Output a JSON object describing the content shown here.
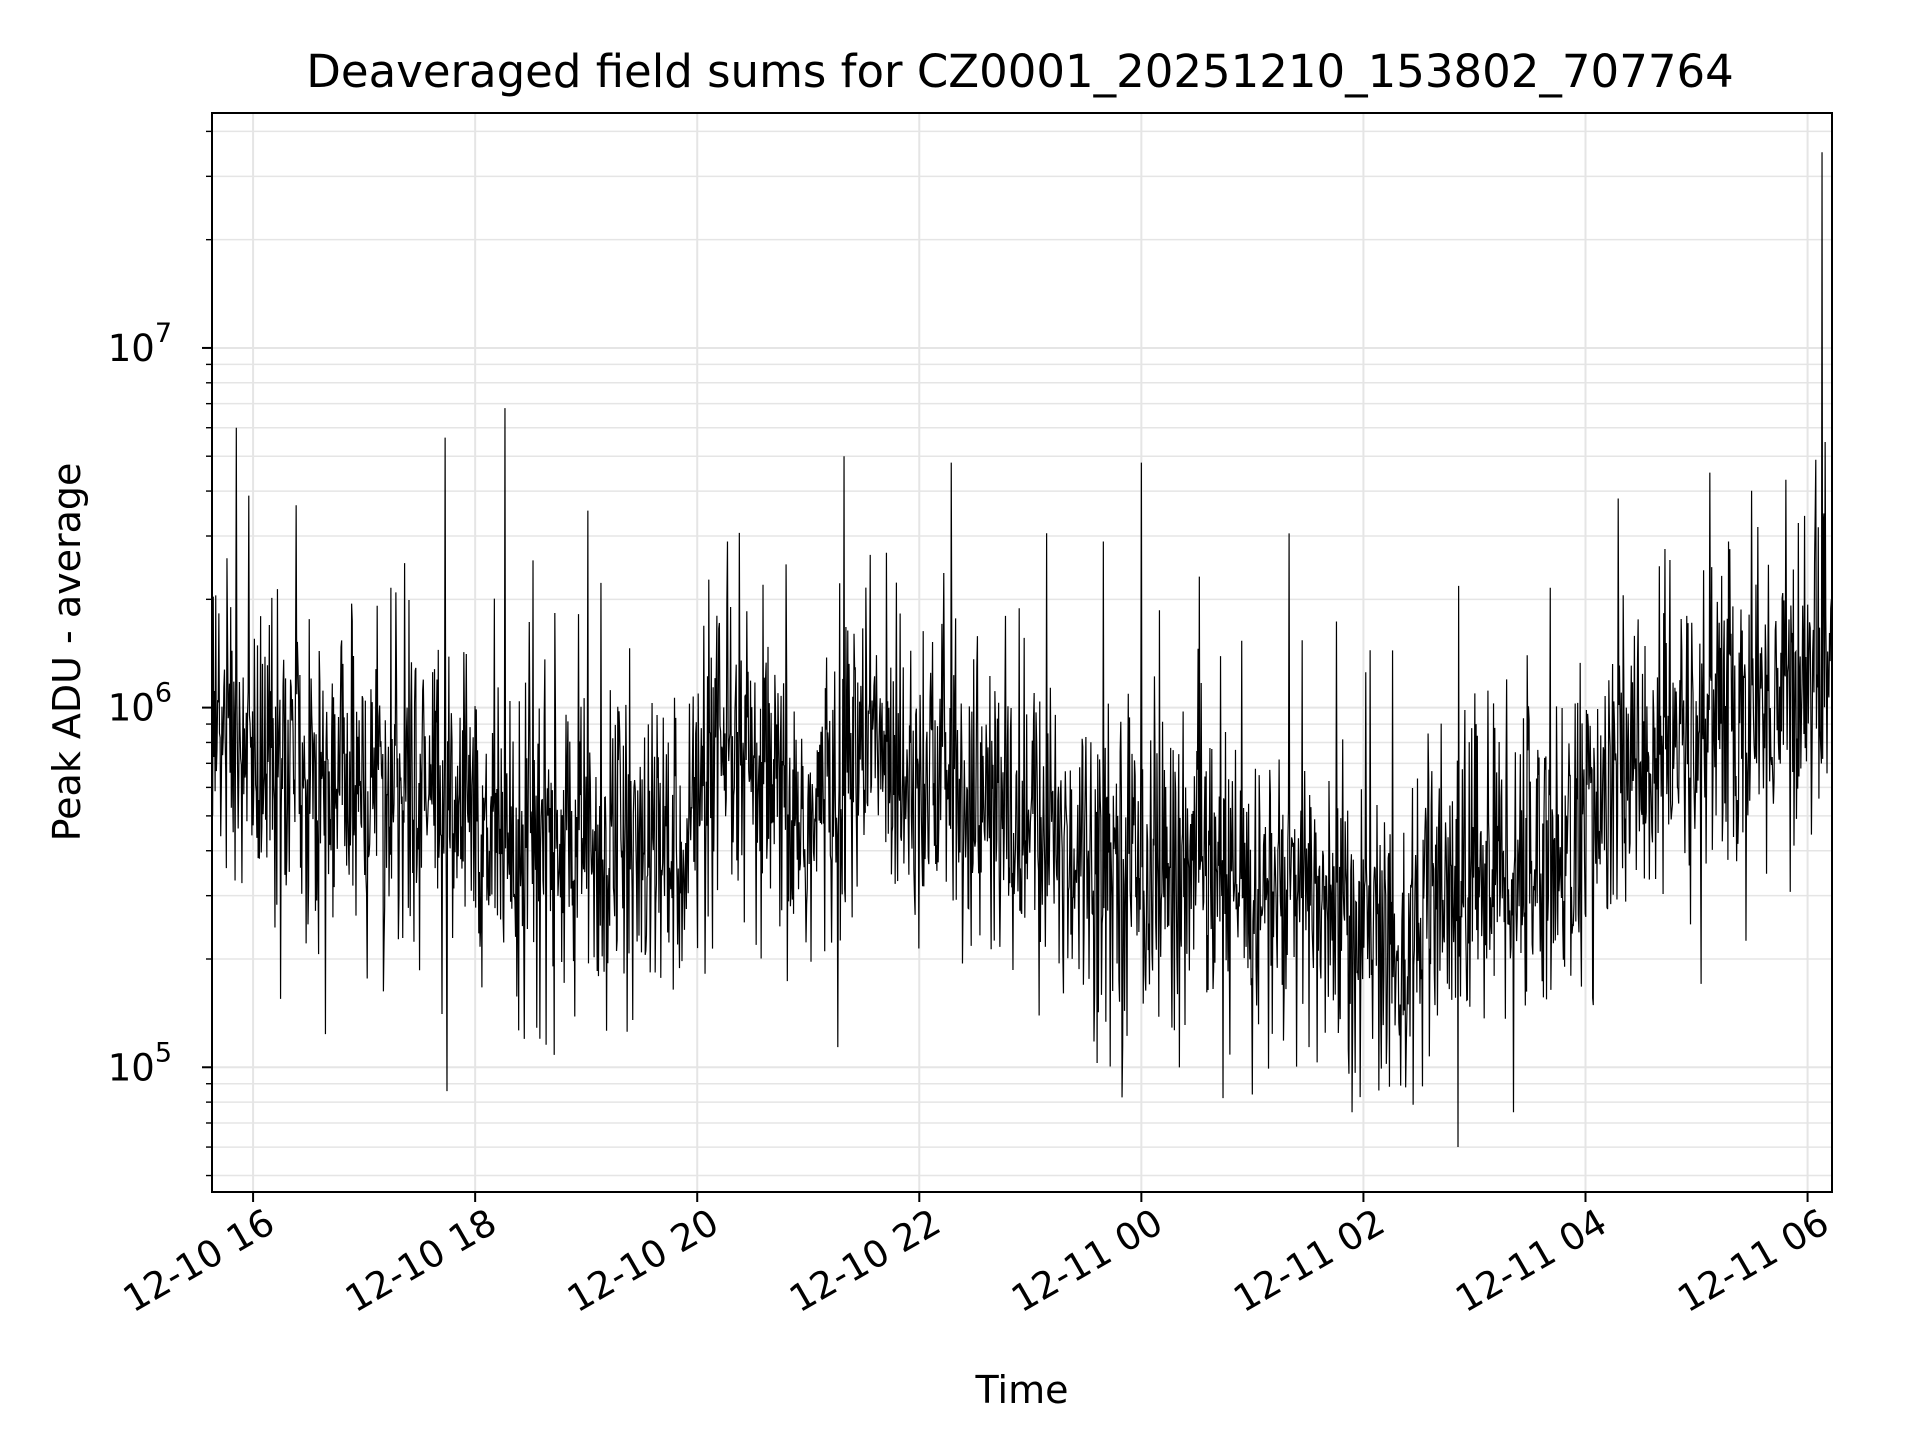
{
  "chart_data": {
    "type": "line",
    "title": "Deaveraged field sums for CZ0001_20251210_153802_707764",
    "xlabel": "Time",
    "ylabel": "Peak ADU - average",
    "yscale": "log",
    "ylim": [
      45000,
      45000000
    ],
    "xlim_hours": [
      15.63,
      30.22
    ],
    "line_color": "#000000",
    "grid": true,
    "grid_color": "#e5e5e5",
    "x_ticks": [
      {
        "label": "12-10 16",
        "hours": 16
      },
      {
        "label": "12-10 18",
        "hours": 18
      },
      {
        "label": "12-10 20",
        "hours": 20
      },
      {
        "label": "12-10 22",
        "hours": 22
      },
      {
        "label": "12-11 00",
        "hours": 24
      },
      {
        "label": "12-11 02",
        "hours": 26
      },
      {
        "label": "12-11 04",
        "hours": 28
      },
      {
        "label": "12-11 06",
        "hours": 30
      }
    ],
    "y_ticks": [
      {
        "base": "10",
        "exp": "5",
        "value": 100000
      },
      {
        "base": "10",
        "exp": "6",
        "value": 1000000
      },
      {
        "base": "10",
        "exp": "7",
        "value": 10000000
      }
    ],
    "series": [
      {
        "name": "Peak ADU - average",
        "points_count": 2600,
        "trend_hours": [
          15.63,
          16.5,
          17.5,
          18.3,
          19.0,
          19.7,
          20.3,
          21.0,
          21.5,
          22.0,
          22.7,
          23.5,
          24.3,
          25.0,
          25.8,
          26.3,
          27.0,
          27.8,
          28.5,
          29.3,
          30.0,
          30.22
        ],
        "trend_values": [
          900000,
          650000,
          600000,
          450000,
          400000,
          380000,
          700000,
          450000,
          800000,
          700000,
          500000,
          400000,
          350000,
          300000,
          280000,
          200000,
          350000,
          400000,
          700000,
          900000,
          1200000,
          1500000
        ],
        "spikes": [
          {
            "hours": 15.85,
            "value": 6000000
          },
          {
            "hours": 18.27,
            "value": 6800000
          },
          {
            "hours": 21.32,
            "value": 5000000
          },
          {
            "hours": 22.29,
            "value": 4800000
          },
          {
            "hours": 24.0,
            "value": 4800000
          },
          {
            "hours": 29.12,
            "value": 4500000
          },
          {
            "hours": 30.13,
            "value": 35000000
          },
          {
            "hours": 26.85,
            "value": 60000
          },
          {
            "hours": 25.9,
            "value": 75000
          },
          {
            "hours": 27.35,
            "value": 75000
          },
          {
            "hours": 16.25,
            "value": 155000
          },
          {
            "hours": 18.58,
            "value": 120000
          }
        ]
      }
    ]
  }
}
